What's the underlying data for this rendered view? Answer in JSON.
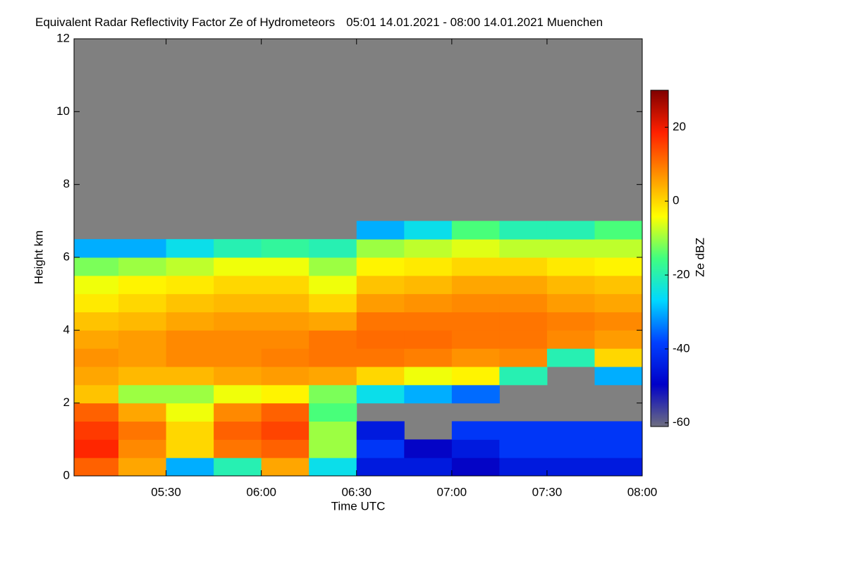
{
  "chart_data": {
    "type": "heatmap",
    "title": "Equivalent Radar Reflectivity Factor Ze of Hydrometeors",
    "subtitle": "05:01 14.01.2021 - 08:00 14.01.2021 Muenchen",
    "xlabel": "Time UTC",
    "ylabel": "Height km",
    "colorbar_label": "Ze dBZ",
    "xlim": [
      5.0167,
      8.0
    ],
    "xticks": [
      {
        "value": 5.5,
        "label": "05:30"
      },
      {
        "value": 6.0,
        "label": "06:00"
      },
      {
        "value": 6.5,
        "label": "06:30"
      },
      {
        "value": 7.0,
        "label": "07:00"
      },
      {
        "value": 7.5,
        "label": "07:30"
      },
      {
        "value": 8.0,
        "label": "08:00"
      }
    ],
    "ylim": [
      0,
      12
    ],
    "yticks": [
      0,
      2,
      4,
      6,
      8,
      10,
      12
    ],
    "clim": [
      -61,
      30
    ],
    "cticks": [
      20,
      0,
      -20,
      -40,
      -60
    ],
    "colormap": [
      "#6e6e80",
      "#0000c8",
      "#0040ff",
      "#00d8ff",
      "#40ff80",
      "#ffff00",
      "#ff9000",
      "#ff2000",
      "#800000"
    ],
    "no_data_color": "#808080",
    "x": [
      5.125,
      5.375,
      5.625,
      5.875,
      6.125,
      6.375,
      6.625,
      6.875,
      7.125,
      7.375,
      7.625,
      7.875
    ],
    "y": [
      0.25,
      0.75,
      1.25,
      1.75,
      2.25,
      2.75,
      3.25,
      3.75,
      4.25,
      4.75,
      5.25,
      5.75,
      6.25,
      6.75
    ],
    "z": [
      [
        12,
        5,
        -30,
        -20,
        5,
        -25,
        -45,
        -45,
        -50,
        -45,
        -45,
        -45
      ],
      [
        18,
        8,
        0,
        10,
        12,
        -10,
        -40,
        -50,
        -45,
        -40,
        -40,
        -40
      ],
      [
        16,
        10,
        0,
        12,
        15,
        -10,
        -45,
        null,
        -40,
        -40,
        -40,
        -40
      ],
      [
        12,
        5,
        -5,
        8,
        12,
        -15,
        null,
        null,
        null,
        null,
        null,
        null
      ],
      [
        2,
        -10,
        -10,
        -5,
        -3,
        -12,
        -25,
        -30,
        -35,
        null,
        null,
        null
      ],
      [
        5,
        3,
        3,
        5,
        6,
        5,
        0,
        -5,
        -3,
        -20,
        null,
        -30
      ],
      [
        7,
        6,
        8,
        8,
        9,
        10,
        10,
        9,
        7,
        8,
        -20,
        0
      ],
      [
        5,
        6,
        8,
        8,
        8,
        10,
        11,
        11,
        10,
        10,
        8,
        6
      ],
      [
        2,
        3,
        5,
        6,
        6,
        5,
        10,
        10,
        10,
        10,
        9,
        8
      ],
      [
        -2,
        0,
        2,
        3,
        3,
        0,
        6,
        7,
        8,
        8,
        6,
        5
      ],
      [
        -5,
        -3,
        -2,
        0,
        0,
        -5,
        2,
        3,
        5,
        5,
        3,
        2
      ],
      [
        -12,
        -10,
        -8,
        -5,
        -5,
        -10,
        -3,
        -2,
        0,
        0,
        -2,
        -3
      ],
      [
        -30,
        -30,
        -25,
        -20,
        -18,
        -20,
        -10,
        -8,
        -6,
        -8,
        -8,
        -8
      ],
      [
        null,
        null,
        null,
        null,
        null,
        null,
        -30,
        -25,
        -15,
        -20,
        -20,
        -15
      ]
    ]
  }
}
